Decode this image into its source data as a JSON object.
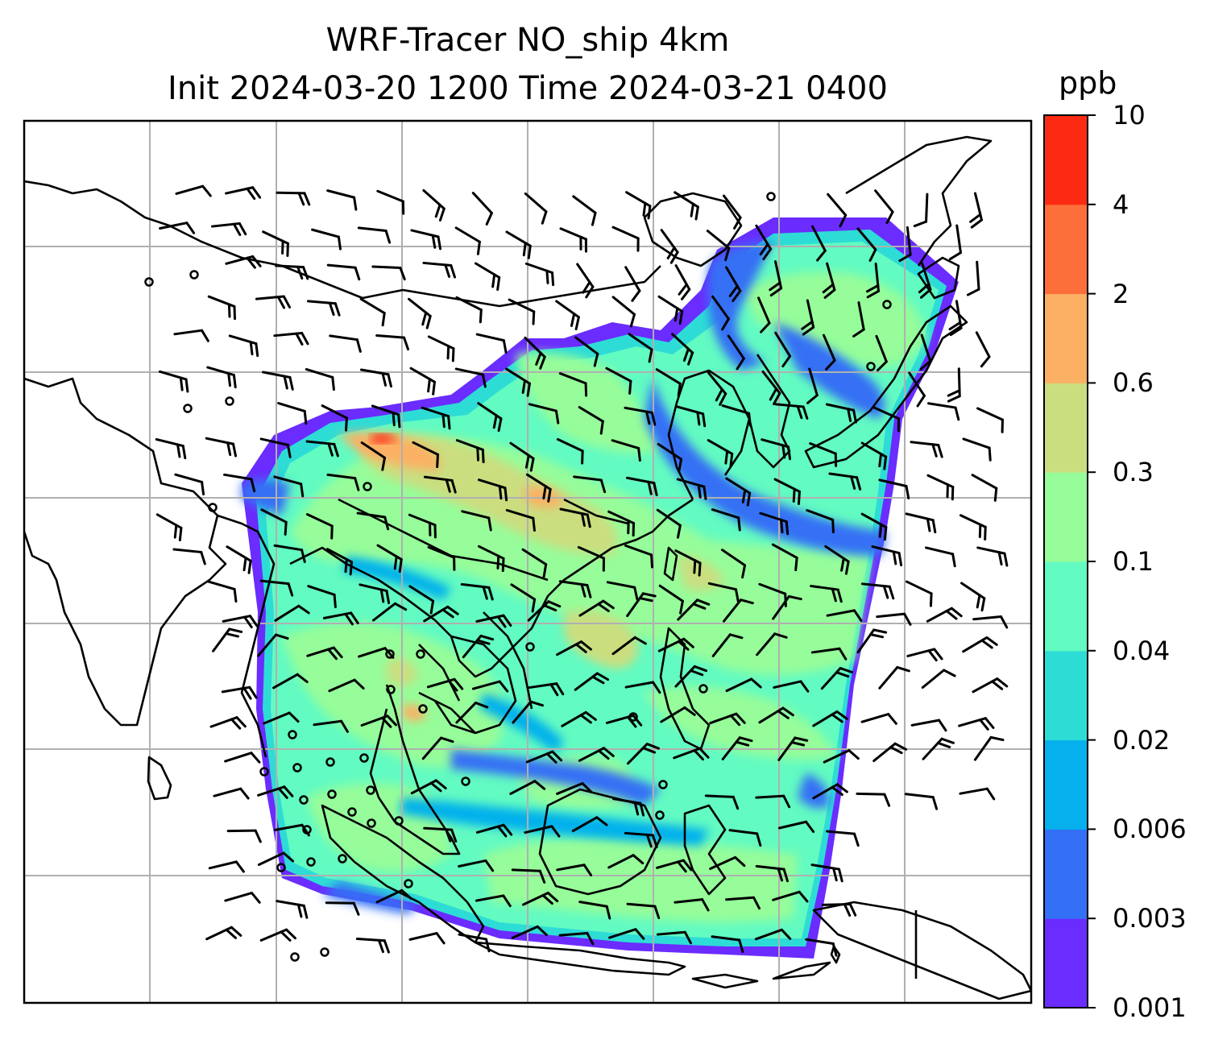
{
  "title": {
    "line1": "WRF-Tracer NO_ship 4km",
    "line2": "Init 2024-03-20 1200 Time 2024-03-21 0400"
  },
  "colorbar": {
    "unit": "ppb",
    "ticks": [
      "0.001",
      "0.003",
      "0.006",
      "0.02",
      "0.04",
      "0.1",
      "0.3",
      "0.6",
      "2",
      "4",
      "10"
    ],
    "colors": [
      "#6a2cff",
      "#3470f5",
      "#06b0ec",
      "#2edcd6",
      "#62fbc2",
      "#96fd9a",
      "#cade80",
      "#fcb063",
      "#fc6f3b",
      "#fc2a12"
    ]
  },
  "map": {
    "background": "#ffffff",
    "gridlines": true,
    "field_colors": {
      "purple": "#6a2cff",
      "blue": "#3470f5",
      "cyan": "#06b0ec",
      "teal": "#2edcd6",
      "aqua": "#62fbc2",
      "green": "#96fd9a",
      "olive": "#cade80",
      "orange": "#fcb063",
      "red": "#fc2a12"
    },
    "wind_icon": "wind-barb-icon",
    "calm_icon": "calm-circle-icon"
  }
}
